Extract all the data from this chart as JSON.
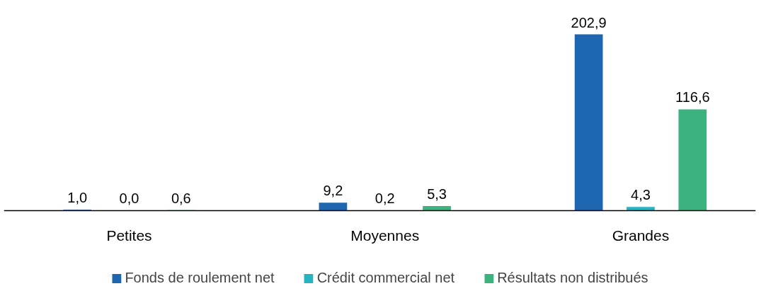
{
  "chart_data": {
    "type": "bar",
    "categories": [
      "Petites",
      "Moyennes",
      "Grandes"
    ],
    "series": [
      {
        "name": "Fonds de roulement net",
        "color": "#1f66b0",
        "values": [
          1.0,
          9.2,
          202.9
        ],
        "value_labels": [
          "1,0",
          "9,2",
          "202,9"
        ]
      },
      {
        "name": "Crédit commercial net",
        "color": "#26b4c2",
        "values": [
          0.0,
          0.2,
          4.3
        ],
        "value_labels": [
          "0,0",
          "0,2",
          "4,3"
        ]
      },
      {
        "name": "Résultats non distribués",
        "color": "#3cb37f",
        "values": [
          0.6,
          5.3,
          116.6
        ],
        "value_labels": [
          "0,6",
          "5,3",
          "116,6"
        ]
      }
    ],
    "legend": "bottom"
  }
}
